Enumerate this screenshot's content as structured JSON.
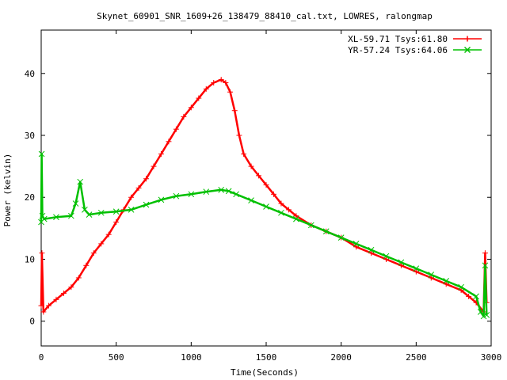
{
  "chart_data": {
    "type": "line",
    "title": "Skynet_60901_SNR_1609+26_138479_88410_cal.txt, LOWRES, ralongmap",
    "xlabel": "Time(Seconds)",
    "ylabel": "Power (kelvin)",
    "xlim": [
      0,
      3000
    ],
    "ylim": [
      -4,
      47
    ],
    "xticks": [
      0,
      500,
      1000,
      1500,
      2000,
      2500,
      3000
    ],
    "yticks": [
      0,
      10,
      20,
      30,
      40
    ],
    "grid": false,
    "legend_position": "top-right",
    "series": [
      {
        "name": "XL-59.71 Tsys:61.80",
        "color": "#ff0000",
        "marker": "+",
        "x": [
          0,
          5,
          15,
          50,
          100,
          150,
          200,
          250,
          300,
          350,
          400,
          450,
          500,
          550,
          600,
          650,
          700,
          750,
          800,
          850,
          900,
          950,
          1000,
          1050,
          1100,
          1150,
          1200,
          1230,
          1260,
          1290,
          1320,
          1350,
          1400,
          1450,
          1500,
          1550,
          1600,
          1650,
          1700,
          1800,
          1900,
          2000,
          2100,
          2200,
          2300,
          2400,
          2500,
          2600,
          2700,
          2800,
          2850,
          2900,
          2950,
          2960,
          2970
        ],
        "y": [
          2.5,
          11,
          1.5,
          2.5,
          3.5,
          4.5,
          5.5,
          7,
          9,
          11,
          12.5,
          14,
          16,
          18,
          20,
          21.5,
          23,
          25,
          27,
          29,
          31,
          33,
          34.5,
          36,
          37.5,
          38.5,
          39,
          38.5,
          37,
          34,
          30,
          27,
          25,
          23.5,
          22,
          20.5,
          19,
          18,
          17,
          15.5,
          14.5,
          13.5,
          12,
          11,
          10,
          9,
          8,
          7,
          6,
          5,
          4,
          3,
          1.5,
          11,
          3
        ]
      },
      {
        "name": "YR-57.24 Tsys:64.06",
        "color": "#00c000",
        "marker": "x",
        "x": [
          0,
          3,
          8,
          20,
          100,
          200,
          230,
          260,
          290,
          320,
          400,
          500,
          600,
          700,
          800,
          900,
          1000,
          1100,
          1200,
          1250,
          1300,
          1400,
          1500,
          1600,
          1700,
          1800,
          1900,
          2000,
          2100,
          2200,
          2300,
          2400,
          2500,
          2600,
          2700,
          2800,
          2900,
          2930,
          2950,
          2960,
          2970
        ],
        "y": [
          16,
          27,
          17,
          16.5,
          16.8,
          17,
          19,
          22.5,
          18,
          17.2,
          17.5,
          17.7,
          18,
          18.8,
          19.6,
          20.2,
          20.5,
          20.9,
          21.2,
          21,
          20.5,
          19.5,
          18.5,
          17.5,
          16.5,
          15.5,
          14.5,
          13.5,
          12.5,
          11.5,
          10.5,
          9.5,
          8.5,
          7.5,
          6.5,
          5.5,
          4,
          1.5,
          0.8,
          9,
          1
        ]
      }
    ]
  }
}
